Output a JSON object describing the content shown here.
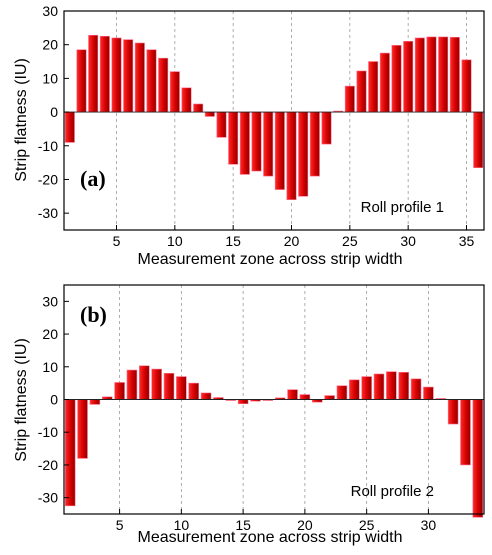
{
  "chart_data": [
    {
      "type": "bar",
      "panel_label": "(a)",
      "annotation": "Roll profile 1",
      "xlabel": "Measurement zone across strip width",
      "ylabel": "Strip flatness (IU)",
      "xlim": [
        0.5,
        36.5
      ],
      "ylim": [
        -35,
        30
      ],
      "x_ticks": [
        5,
        10,
        15,
        20,
        25,
        30,
        35
      ],
      "y_ticks": [
        -30,
        -20,
        -10,
        0,
        10,
        20,
        30
      ],
      "vertical_grid": true,
      "x": [
        1,
        2,
        3,
        4,
        5,
        6,
        7,
        8,
        9,
        10,
        11,
        12,
        13,
        14,
        15,
        16,
        17,
        18,
        19,
        20,
        21,
        22,
        23,
        24,
        25,
        26,
        27,
        28,
        29,
        30,
        31,
        32,
        33,
        34,
        35,
        36
      ],
      "values": [
        -9,
        18.5,
        22.8,
        22.5,
        22,
        21.5,
        20.5,
        18.5,
        16,
        12,
        7.2,
        2.4,
        -1.3,
        -7.5,
        -15.5,
        -18.5,
        -17.5,
        -19,
        -23,
        -26,
        -25,
        -19,
        -9.5,
        0.3,
        7.7,
        12.2,
        15,
        17.5,
        19.8,
        21,
        22,
        22.3,
        22.3,
        22.2,
        15.5,
        -16.5
      ]
    },
    {
      "type": "bar",
      "panel_label": "(b)",
      "annotation": "Roll profile 2",
      "xlabel": "Measurement zone across strip width",
      "ylabel": "Strip flatness (IU)",
      "xlim": [
        0.5,
        34.5
      ],
      "ylim": [
        -35,
        35
      ],
      "x_ticks": [
        5,
        10,
        15,
        20,
        25,
        30
      ],
      "y_ticks": [
        -30,
        -20,
        -10,
        0,
        10,
        20,
        30
      ],
      "vertical_grid": true,
      "x": [
        1,
        2,
        3,
        4,
        5,
        6,
        7,
        8,
        9,
        10,
        11,
        12,
        13,
        14,
        15,
        16,
        17,
        18,
        19,
        20,
        21,
        22,
        23,
        24,
        25,
        26,
        27,
        28,
        29,
        30,
        31,
        32,
        33,
        34
      ],
      "values": [
        -32.5,
        -18,
        -1.5,
        0.8,
        5.2,
        9,
        10.3,
        9.3,
        8,
        7,
        5,
        2,
        0.6,
        -0.3,
        -1.3,
        -0.5,
        -0.3,
        0.5,
        3,
        1.5,
        -0.8,
        1.2,
        4.2,
        6,
        7,
        7.8,
        8.5,
        8.3,
        6.3,
        3.8,
        0.3,
        -7.5,
        -20,
        -36
      ]
    }
  ]
}
